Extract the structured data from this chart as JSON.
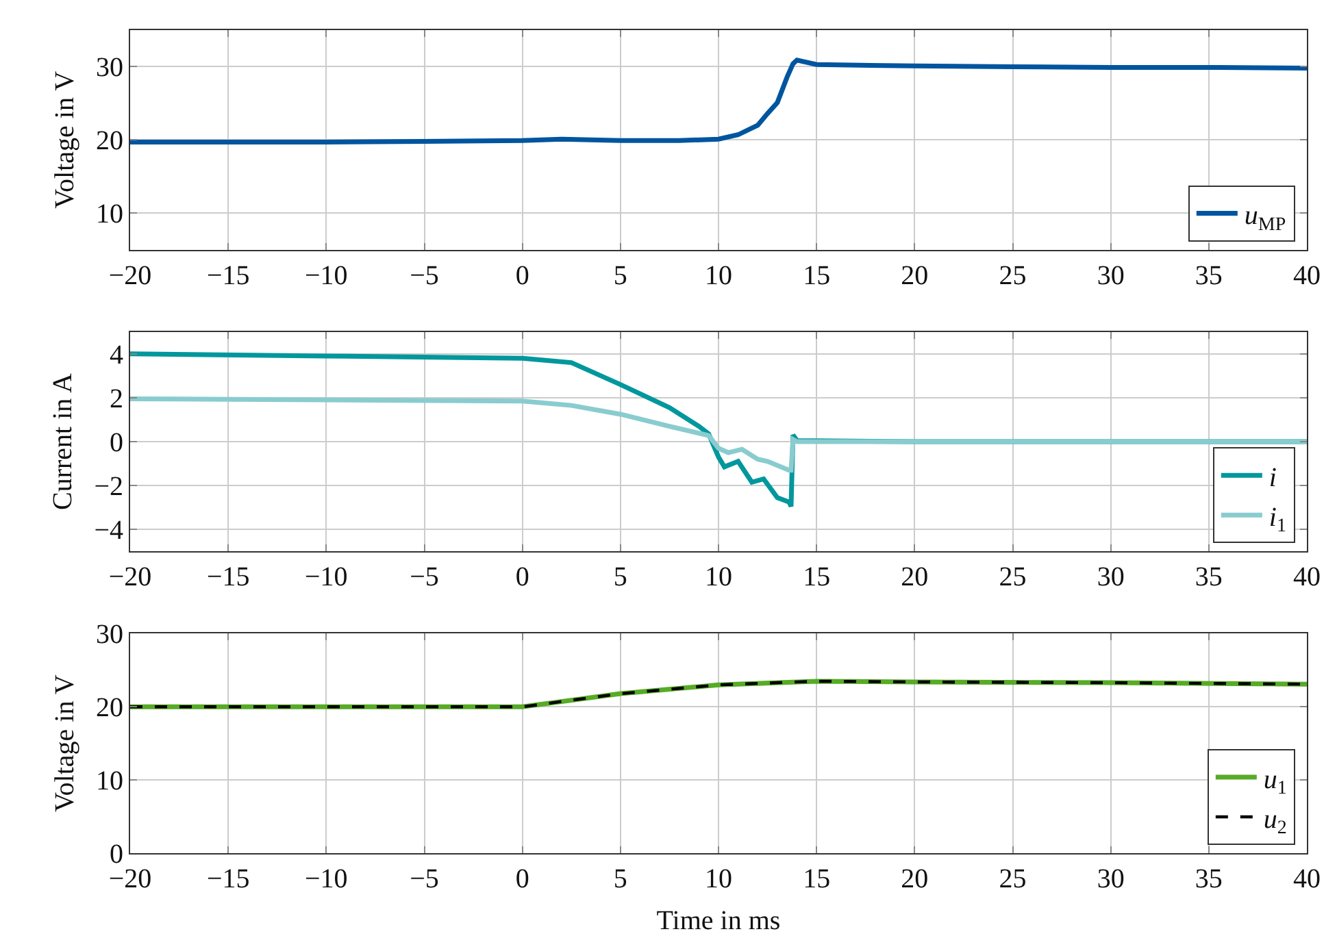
{
  "chart_data": [
    {
      "type": "line",
      "ylabel": "Voltage in V",
      "xlim": [
        -20,
        40
      ],
      "xticks": [
        -20,
        -15,
        -10,
        -5,
        0,
        5,
        10,
        15,
        20,
        25,
        30,
        35,
        40
      ],
      "ylim": [
        5,
        35
      ],
      "yticks": [
        10,
        20,
        30
      ],
      "grid": true,
      "legend": "bottom right",
      "marker": "none",
      "series": [
        {
          "name": "u$_{MP}$",
          "color": "#00559f",
          "line_style": "solid",
          "x": [
            -20,
            -15,
            -10,
            -5,
            0,
            2,
            5,
            8,
            10,
            11,
            12,
            12.5,
            13,
            13.5,
            13.8,
            14,
            15,
            20,
            25,
            30,
            35,
            40
          ],
          "values": [
            19.7,
            19.7,
            19.7,
            19.8,
            19.9,
            20.1,
            19.9,
            19.9,
            20.1,
            20.7,
            22,
            23.6,
            25.1,
            28.6,
            30.4,
            30.9,
            30.3,
            30.1,
            30,
            29.9,
            29.9,
            29.8
          ]
        }
      ]
    },
    {
      "type": "line",
      "ylabel": "Current in A",
      "xlim": [
        -20,
        40
      ],
      "xticks": [
        -20,
        -15,
        -10,
        -5,
        0,
        5,
        10,
        15,
        20,
        25,
        30,
        35,
        40
      ],
      "ylim": [
        -5,
        5
      ],
      "yticks": [
        -4,
        -2,
        0,
        2,
        4
      ],
      "grid": true,
      "legend": "bottom right",
      "marker": "none",
      "series": [
        {
          "name": "i",
          "color": "#00979d",
          "line_style": "solid",
          "x": [
            -20,
            -10,
            0,
            2.5,
            5,
            7.5,
            9,
            9.5,
            10,
            10.3,
            11,
            11.7,
            12.3,
            13,
            13.6,
            13.7,
            13.8,
            14,
            20,
            30,
            40
          ],
          "values": [
            4.0,
            3.9,
            3.8,
            3.6,
            2.6,
            1.55,
            0.7,
            0.35,
            -0.7,
            -1.15,
            -0.9,
            -1.85,
            -1.7,
            -2.55,
            -2.75,
            -2.95,
            0.3,
            0.05,
            0,
            0,
            0
          ]
        },
        {
          "name": "i$_{1}$",
          "color": "#89cccf",
          "line_style": "solid",
          "x": [
            -20,
            -10,
            0,
            2.5,
            5,
            7.5,
            9.5,
            10,
            10.5,
            11.2,
            12,
            12.5,
            13.6,
            13.7,
            13.8,
            14,
            20,
            30,
            40
          ],
          "values": [
            1.95,
            1.9,
            1.85,
            1.65,
            1.25,
            0.7,
            0.28,
            -0.3,
            -0.5,
            -0.35,
            -0.8,
            -0.9,
            -1.3,
            -1.3,
            0.1,
            0,
            0,
            0,
            0
          ]
        }
      ]
    },
    {
      "type": "line",
      "xlabel": "Time in ms",
      "ylabel": "Voltage in V",
      "xlim": [
        -20,
        40
      ],
      "xticks": [
        -20,
        -15,
        -10,
        -5,
        0,
        5,
        10,
        15,
        20,
        25,
        30,
        35,
        40
      ],
      "ylim": [
        0,
        30
      ],
      "yticks": [
        0,
        10,
        20,
        30
      ],
      "grid": true,
      "legend": "bottom right",
      "marker": "none",
      "series": [
        {
          "name": "u$_{1}$",
          "color": "#57ab27",
          "line_style": "solid",
          "x": [
            -20,
            -10,
            0,
            5,
            10,
            15,
            20,
            30,
            40
          ],
          "values": [
            20,
            20,
            20,
            21.8,
            23.0,
            23.5,
            23.4,
            23.3,
            23.1
          ]
        },
        {
          "name": "u$_{2}$",
          "color": "#000000",
          "line_style": "dashed",
          "x": [
            -20,
            -10,
            0,
            5,
            10,
            15,
            20,
            30,
            40
          ],
          "values": [
            20,
            20,
            20,
            21.8,
            23.0,
            23.5,
            23.4,
            23.3,
            23.1
          ]
        }
      ]
    }
  ]
}
